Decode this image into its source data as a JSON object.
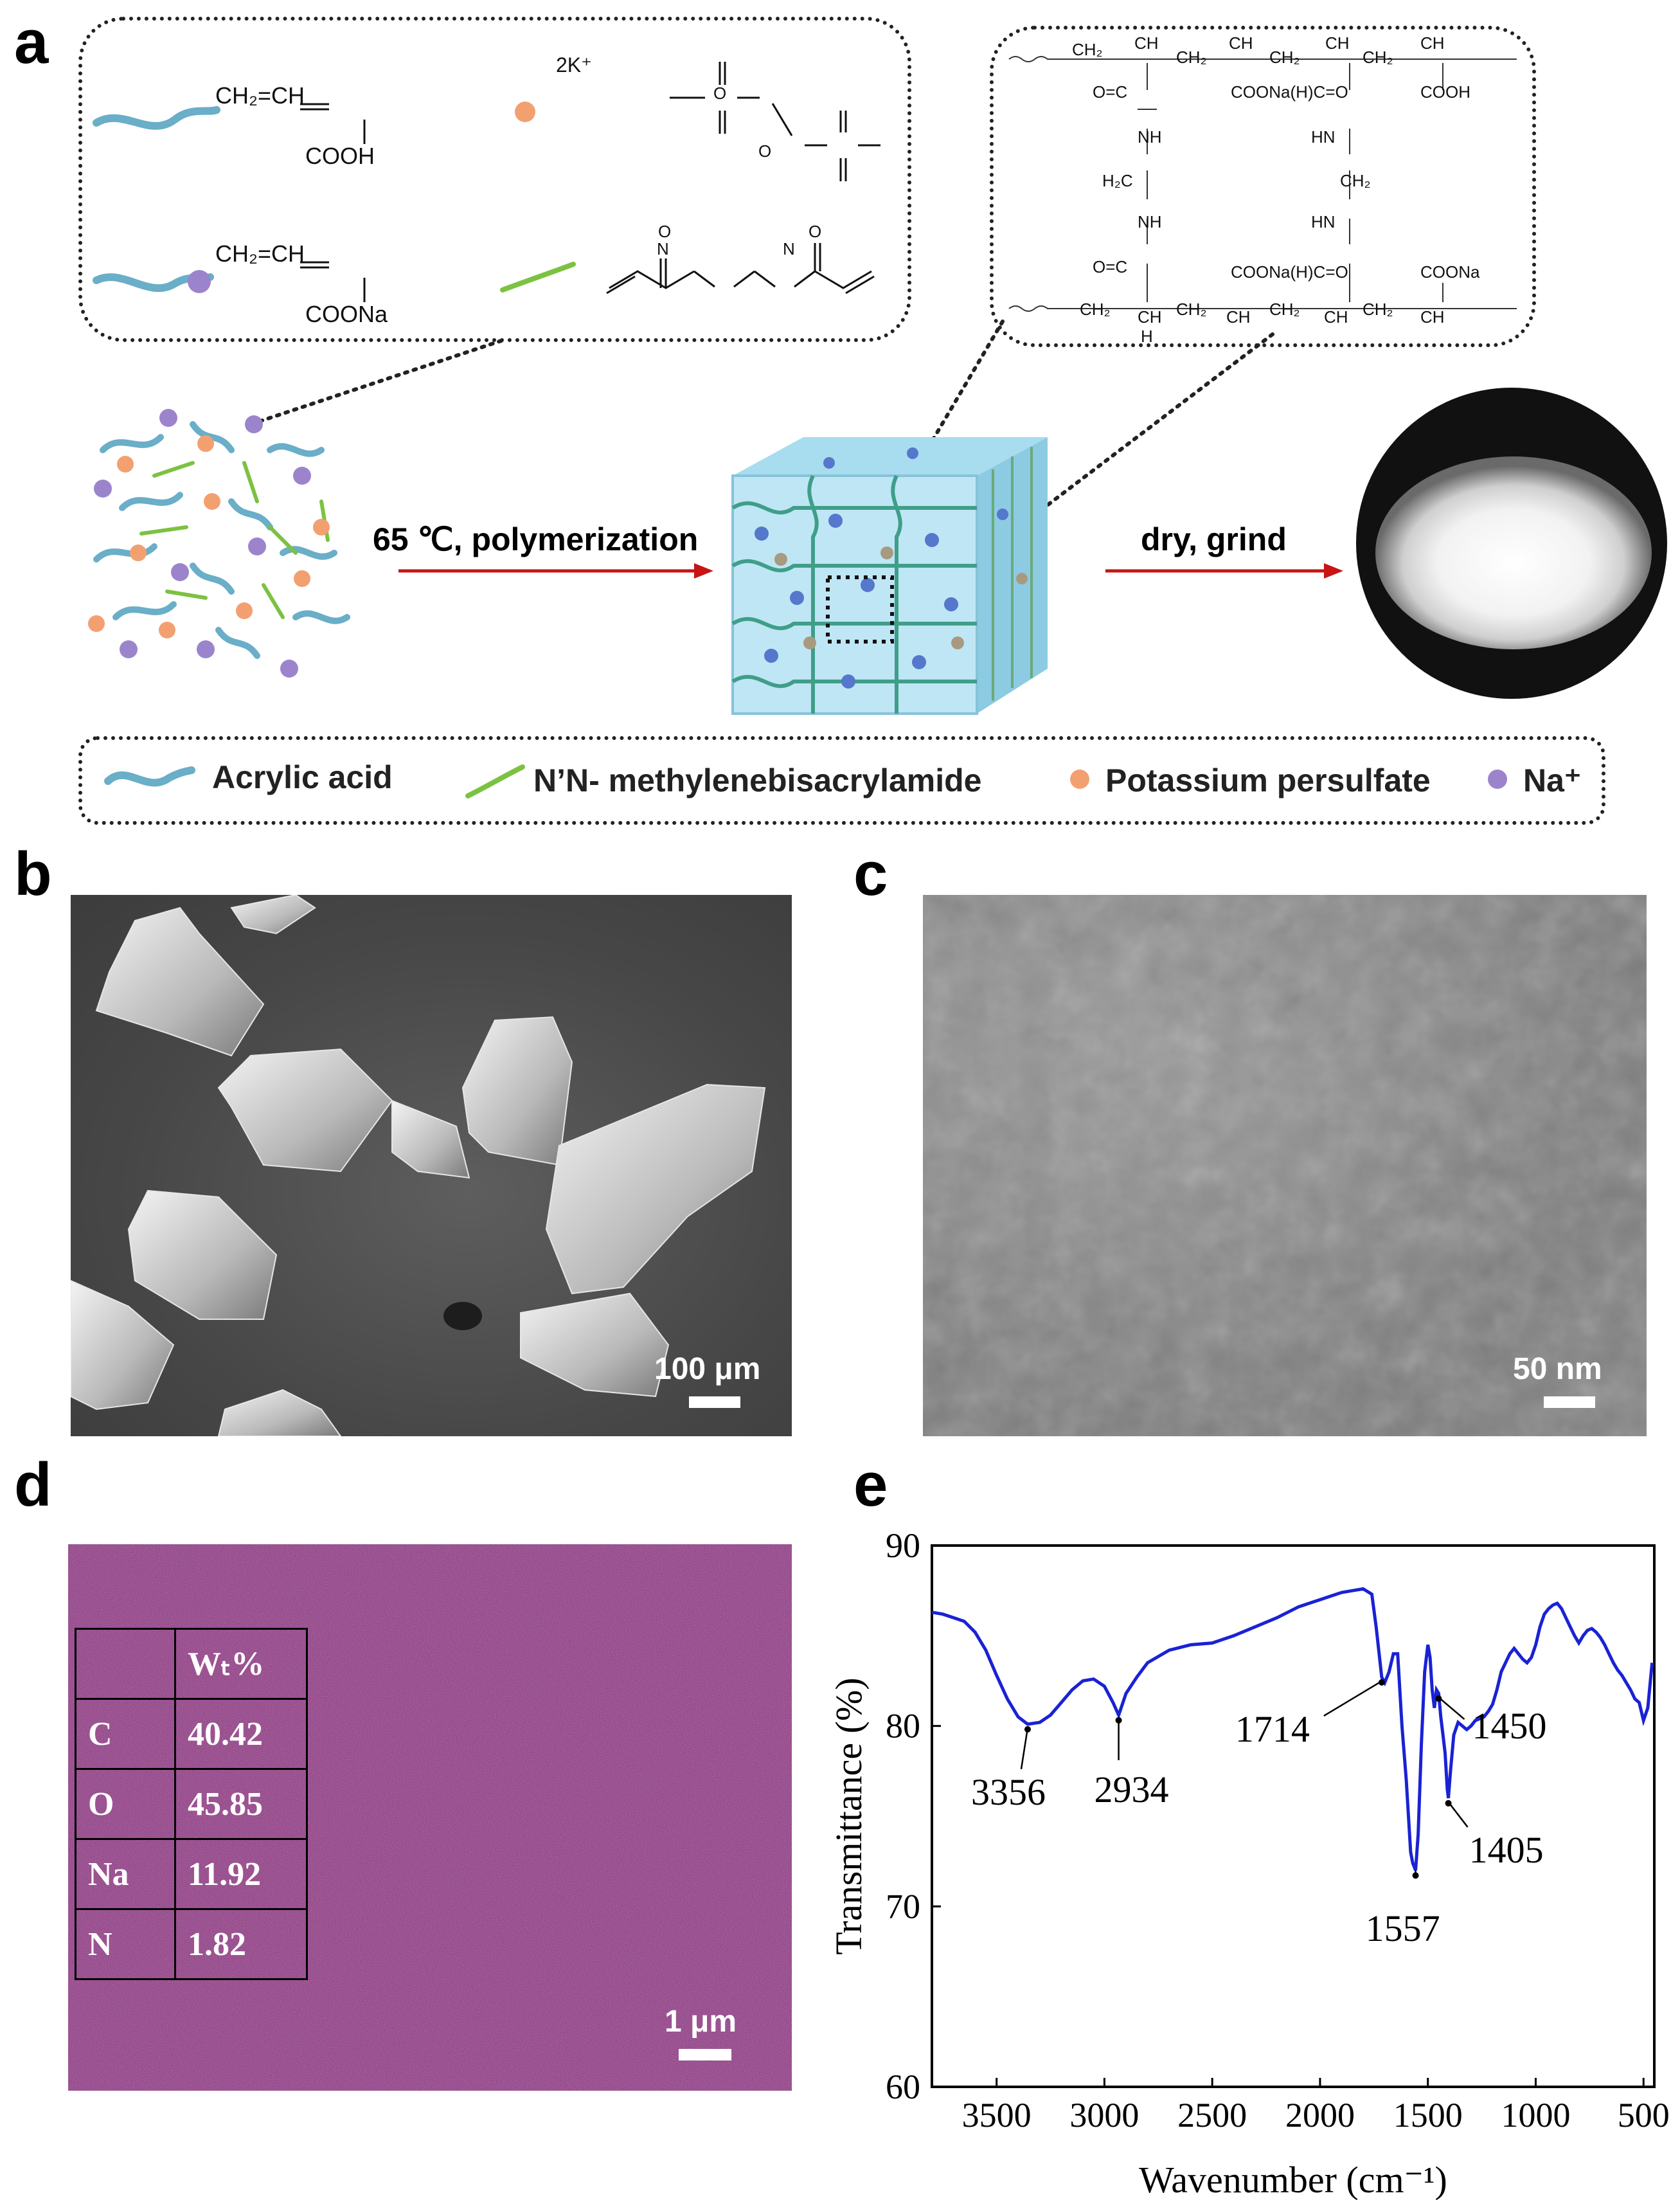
{
  "panels": {
    "a": "a",
    "b": "b",
    "c": "c",
    "d": "d",
    "e": "e"
  },
  "panel_a": {
    "monomer1": {
      "top": "CH₂=CH",
      "bottom": "COOH"
    },
    "initiator_cation": "2K⁺",
    "monomer2": {
      "top": "CH₂=CH",
      "bottom": "COONa"
    },
    "crosslinker_atoms": {
      "o": "O",
      "n": "N"
    },
    "network": {
      "top_chain": [
        "CH₂",
        "CH",
        "CH₂",
        "CH",
        "CH₂",
        "CH",
        "CH₂",
        "CH"
      ],
      "bottom_chain": [
        "CH₂",
        "CH",
        "CH₂",
        "CH",
        "CH₂",
        "CH",
        "CH₂",
        "CH"
      ],
      "groups": {
        "oc": "O=C",
        "coo_mid": "COONa(H)C=O",
        "cooh": "COOH",
        "nh": "NH",
        "hn": "HN",
        "h2c": "H₂C",
        "ch2": "CH₂",
        "coona": "COONa",
        "h": "H"
      }
    },
    "arrow1_label": "65 ℃, polymerization",
    "arrow2_label": "dry, grind",
    "legend": [
      {
        "label": "Acrylic acid",
        "color": "#6aaec8"
      },
      {
        "label": "N’N- methylenebisacrylamide",
        "color": "#7cc242"
      },
      {
        "label": "Potassium persulfate",
        "color": "#f3a070"
      },
      {
        "label": "Na⁺",
        "color": "#9c84cc"
      }
    ]
  },
  "panel_b": {
    "scale": "100 μm"
  },
  "panel_c": {
    "scale": "50 nm"
  },
  "panel_d": {
    "scale": "1 μm",
    "table_header": "Wₜ%",
    "rows": [
      {
        "element": "C",
        "value": "40.42"
      },
      {
        "element": "O",
        "value": "45.85"
      },
      {
        "element": "Na",
        "value": "11.92"
      },
      {
        "element": "N",
        "value": "1.82"
      }
    ]
  },
  "chart_data": {
    "type": "line",
    "xlabel": "Wavenumber (cm⁻¹)",
    "ylabel": "Transmittance (%)",
    "xlim": [
      3800,
      450
    ],
    "ylim": [
      60,
      90
    ],
    "xticks": [
      3500,
      3000,
      2500,
      2000,
      1500,
      1000,
      500
    ],
    "yticks": [
      60,
      70,
      80,
      90
    ],
    "line_color": "#1a22d4",
    "series": [
      {
        "x": [
          3800,
          3750,
          3700,
          3650,
          3600,
          3550,
          3500,
          3450,
          3400,
          3356,
          3300,
          3250,
          3200,
          3150,
          3100,
          3050,
          3000,
          2960,
          2934,
          2900,
          2850,
          2800,
          2700,
          2600,
          2500,
          2400,
          2300,
          2200,
          2100,
          2000,
          1950,
          1900,
          1850,
          1800,
          1760,
          1740,
          1714,
          1700,
          1680,
          1660,
          1640,
          1620,
          1600,
          1580,
          1570,
          1557,
          1545,
          1530,
          1515,
          1500,
          1490,
          1480,
          1470,
          1460,
          1450,
          1440,
          1430,
          1420,
          1410,
          1405,
          1395,
          1380,
          1360,
          1340,
          1320,
          1300,
          1280,
          1260,
          1240,
          1220,
          1200,
          1180,
          1160,
          1140,
          1120,
          1100,
          1080,
          1060,
          1040,
          1020,
          1000,
          980,
          960,
          940,
          920,
          900,
          880,
          860,
          840,
          820,
          800,
          780,
          760,
          740,
          720,
          700,
          680,
          660,
          640,
          620,
          600,
          580,
          560,
          540,
          520,
          500,
          480,
          460
        ],
        "y": [
          86.3,
          86.2,
          86.0,
          85.8,
          85.2,
          84.2,
          82.8,
          81.5,
          80.5,
          80.1,
          80.2,
          80.6,
          81.3,
          82.0,
          82.5,
          82.6,
          82.2,
          81.3,
          80.6,
          81.8,
          82.7,
          83.5,
          84.2,
          84.5,
          84.6,
          85.0,
          85.5,
          86.0,
          86.6,
          87.0,
          87.2,
          87.4,
          87.5,
          87.6,
          87.3,
          85.5,
          82.7,
          82.4,
          83.0,
          84.0,
          84.0,
          80.0,
          77.0,
          73.0,
          72.4,
          72.0,
          74.0,
          79.0,
          83.0,
          84.5,
          83.8,
          82.0,
          81.0,
          82.0,
          81.8,
          80.5,
          79.5,
          78.5,
          76.5,
          76.0,
          77.5,
          79.5,
          80.2,
          80.0,
          79.8,
          80.0,
          80.3,
          80.4,
          80.5,
          80.8,
          81.2,
          82.0,
          83.0,
          83.5,
          84.0,
          84.3,
          84.0,
          83.7,
          83.5,
          83.8,
          84.5,
          85.5,
          86.2,
          86.5,
          86.7,
          86.8,
          86.5,
          86.0,
          85.5,
          85.0,
          84.6,
          85.0,
          85.3,
          85.4,
          85.2,
          84.9,
          84.5,
          84.0,
          83.5,
          83.1,
          82.8,
          82.4,
          82.0,
          81.5,
          81.3,
          80.3,
          81.0,
          83.5
        ]
      }
    ],
    "annotations": [
      {
        "label": "3356",
        "x": 3356
      },
      {
        "label": "2934",
        "x": 2934
      },
      {
        "label": "1714",
        "x": 1714
      },
      {
        "label": "1557",
        "x": 1557
      },
      {
        "label": "1450",
        "x": 1450
      },
      {
        "label": "1405",
        "x": 1405
      }
    ]
  }
}
